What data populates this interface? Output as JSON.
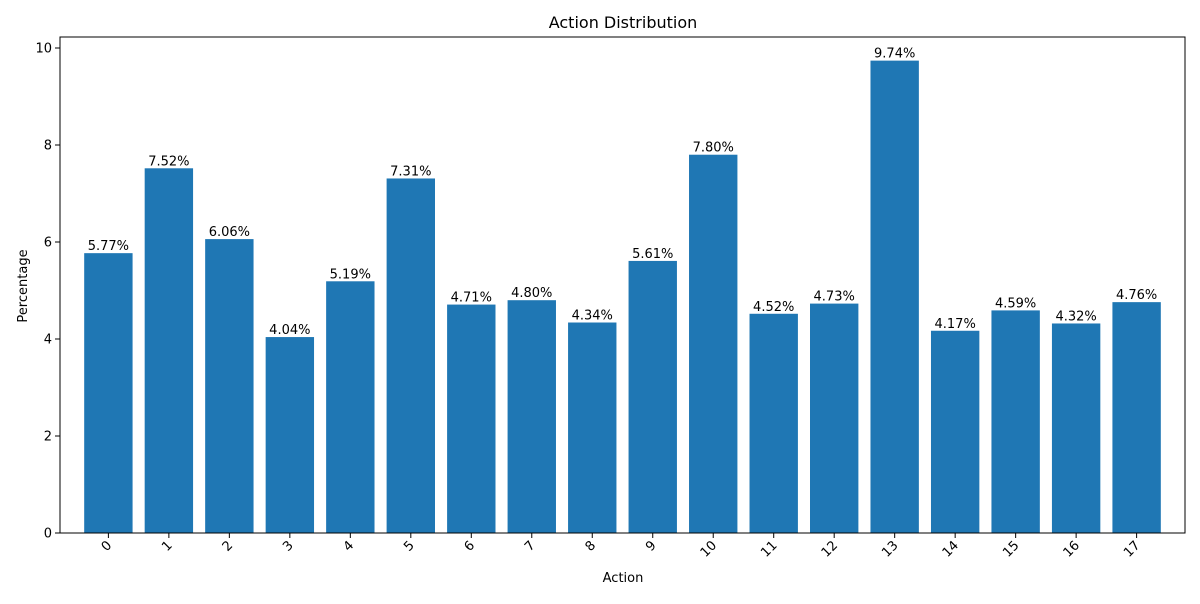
{
  "chart_data": {
    "type": "bar",
    "title": "Action Distribution",
    "xlabel": "Action",
    "ylabel": "Percentage",
    "categories": [
      "0",
      "1",
      "2",
      "3",
      "4",
      "5",
      "6",
      "7",
      "8",
      "9",
      "10",
      "11",
      "12",
      "13",
      "14",
      "15",
      "16",
      "17"
    ],
    "values": [
      5.77,
      7.52,
      6.06,
      4.04,
      5.19,
      7.31,
      4.71,
      4.8,
      4.34,
      5.61,
      7.8,
      4.52,
      4.73,
      9.74,
      4.17,
      4.59,
      4.32,
      4.76
    ],
    "data_labels": [
      "5.77%",
      "7.52%",
      "6.06%",
      "4.04%",
      "5.19%",
      "7.31%",
      "4.71%",
      "4.80%",
      "4.34%",
      "5.61%",
      "7.80%",
      "4.52%",
      "4.73%",
      "9.74%",
      "4.17%",
      "4.59%",
      "4.32%",
      "4.76%"
    ],
    "ylim": [
      0,
      10.227
    ],
    "yticks": [
      0,
      2,
      4,
      6,
      8,
      10
    ],
    "ytick_labels": [
      "0",
      "2",
      "4",
      "6",
      "8",
      "10"
    ],
    "xtick_rotation_deg": 45,
    "grid": false,
    "legend": "none",
    "bar_color": "#1f77b4"
  }
}
